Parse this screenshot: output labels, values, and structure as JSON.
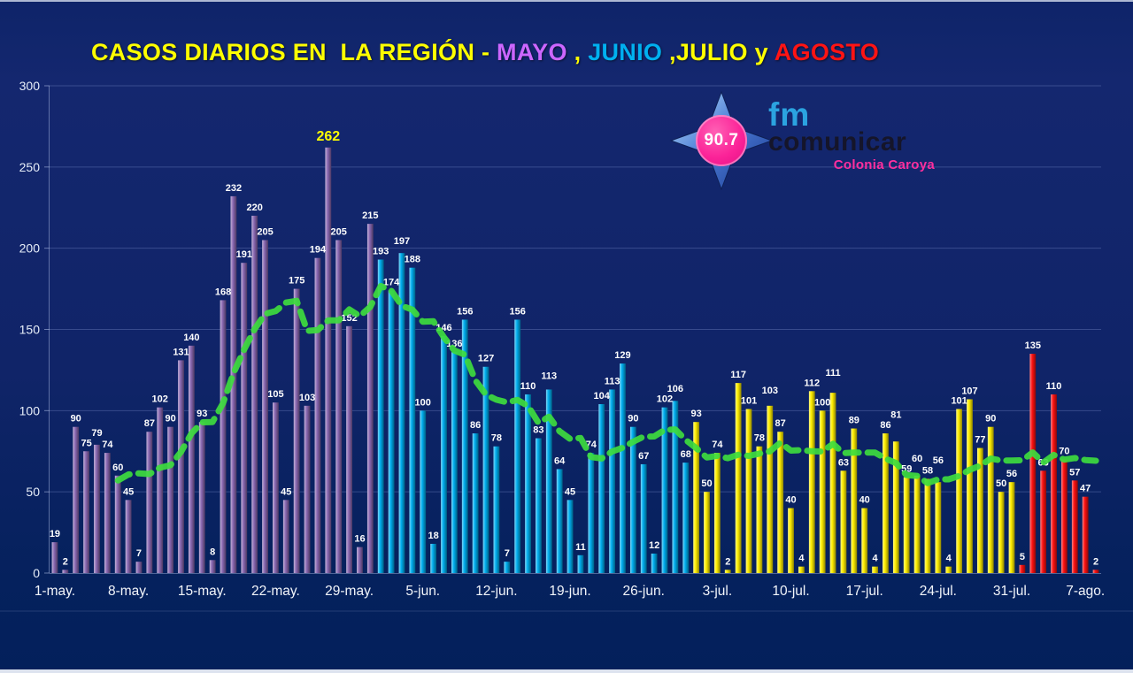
{
  "page": {
    "background_color": "#0b2163",
    "bottom_strip_color": "#dde3ef"
  },
  "title": {
    "parts": [
      {
        "text": "CASOS DIARIOS EN  LA REGIÓN - ",
        "color": "#ffff00"
      },
      {
        "text": "MAYO",
        "color": "#cc66ff"
      },
      {
        "text": " , ",
        "color": "#ffff00"
      },
      {
        "text": "JUNIO",
        "color": "#00b0f0"
      },
      {
        "text": " ,JULIO",
        "color": "#ffff00"
      },
      {
        "text": " y ",
        "color": "#ffff00"
      },
      {
        "text": "AGOSTO",
        "color": "#ff1414"
      }
    ]
  },
  "logo": {
    "frequency": "90.7",
    "fm": "fm",
    "comunicar": "comunicar",
    "tagline": "Colonia Caroya",
    "colors": {
      "fm": "#2ba3e0",
      "comunicar": "#15152a",
      "tagline": "#ff2f9e",
      "badge": "#fb2398",
      "star_light": "#b9e2f8",
      "star_dark": "#16368e"
    }
  },
  "chart_data": {
    "type": "bar",
    "title": "CASOS DIARIOS EN LA REGIÓN - MAYO, JUNIO, JULIO y AGOSTO",
    "xlabel": "",
    "ylabel": "",
    "ylim": [
      0,
      300
    ],
    "yticks": [
      0,
      50,
      100,
      150,
      200,
      250,
      300
    ],
    "xticks": [
      "1-may.",
      "8-may.",
      "15-may.",
      "22-may.",
      "29-may.",
      "5-jun.",
      "12-jun.",
      "19-jun.",
      "26-jun.",
      "3-jul.",
      "10-jul.",
      "17-jul.",
      "24-jul.",
      "31-jul.",
      "7-ago."
    ],
    "xtick_days": [
      1,
      8,
      15,
      22,
      29,
      36,
      43,
      50,
      57,
      64,
      71,
      78,
      85,
      92,
      99
    ],
    "grid": true,
    "legend_position": "none",
    "label_color": "#ffffff",
    "highlight": {
      "value": 262,
      "color": "#ffff00"
    },
    "series": [
      {
        "name": "MAYO",
        "color": "#8a68b2",
        "values": [
          19,
          2,
          90,
          75,
          79,
          74,
          60,
          45,
          7,
          87,
          102,
          90,
          131,
          140,
          93,
          8,
          168,
          232,
          191,
          220,
          205,
          105,
          45,
          175,
          103,
          194,
          262,
          205,
          152,
          16,
          215
        ]
      },
      {
        "name": "JUNIO",
        "color": "#00aeef",
        "values": [
          193,
          174,
          197,
          188,
          100,
          18,
          146,
          136,
          156,
          86,
          127,
          78,
          7,
          156,
          110,
          83,
          113,
          64,
          45,
          11,
          74,
          104,
          113,
          129,
          90,
          67,
          12,
          102,
          106,
          68
        ]
      },
      {
        "name": "JULIO",
        "color": "#ffee00",
        "values": [
          93,
          50,
          74,
          2,
          117,
          101,
          78,
          103,
          87,
          40,
          4,
          112,
          100,
          111,
          63,
          89,
          40,
          4,
          86,
          81,
          59,
          60,
          58,
          56,
          4,
          101,
          107,
          77,
          90,
          50,
          56
        ]
      },
      {
        "name": "AGOSTO",
        "color": "#fe1111",
        "values": [
          5,
          135,
          63,
          110,
          70,
          57,
          47,
          2
        ]
      }
    ],
    "trend": {
      "name": "7-day-moving-average",
      "window": 7,
      "color": "#3edc3e",
      "style": "dashed",
      "stroke_width": 7
    }
  }
}
